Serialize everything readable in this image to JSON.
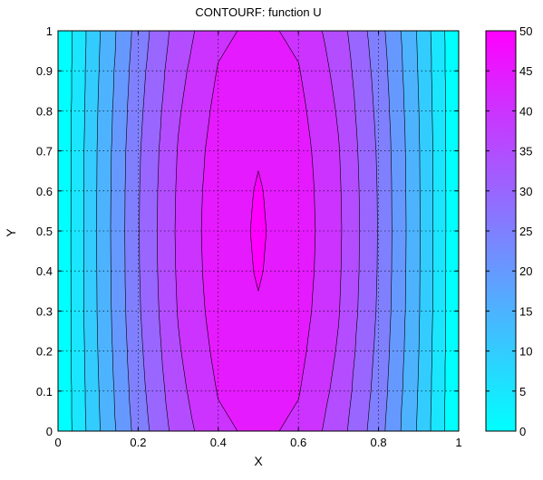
{
  "chart_data": {
    "type": "heatmap",
    "subtype": "filled-contour",
    "title": "CONTOURF:  function U",
    "xlabel": "X",
    "ylabel": "Y",
    "xlim": [
      0,
      1
    ],
    "ylim": [
      0,
      1
    ],
    "x_ticks": [
      "0",
      "0.2",
      "0.4",
      "0.6",
      "0.8",
      "1"
    ],
    "y_ticks": [
      "0",
      "0.1",
      "0.2",
      "0.3",
      "0.4",
      "0.5",
      "0.6",
      "0.7",
      "0.8",
      "0.9",
      "1"
    ],
    "grid": true,
    "grid_style": "dotted",
    "colormap": "cool",
    "colormap_endpoints": [
      "#00ffff",
      "#ff00ff"
    ],
    "levels": [
      0,
      5,
      10,
      15,
      20,
      25,
      30,
      35,
      40,
      45,
      50
    ],
    "clim": [
      0,
      50
    ],
    "grid_x": [
      0,
      0.1,
      0.2,
      0.3,
      0.4,
      0.5,
      0.6,
      0.7,
      0.8,
      0.9,
      1
    ],
    "grid_y": [
      0,
      0.1,
      0.2,
      0.3,
      0.4,
      0.5,
      0.6,
      0.7,
      0.8,
      0.9,
      1
    ],
    "u_values": [
      [
        0.0,
        14.3,
        27.1,
        37.3,
        43.9,
        46.2,
        43.9,
        37.3,
        27.1,
        14.3,
        0.0
      ],
      [
        0.0,
        14.7,
        28.0,
        38.5,
        45.3,
        47.6,
        45.3,
        38.5,
        28.0,
        14.7,
        0.0
      ],
      [
        0.0,
        15.1,
        28.7,
        39.5,
        46.4,
        48.8,
        46.4,
        39.5,
        28.7,
        15.1,
        0.0
      ],
      [
        0.0,
        15.4,
        29.3,
        40.3,
        47.3,
        49.7,
        47.3,
        40.3,
        29.3,
        15.4,
        0.0
      ],
      [
        0.0,
        15.5,
        29.6,
        40.7,
        47.8,
        50.3,
        47.8,
        40.7,
        29.6,
        15.5,
        0.0
      ],
      [
        0.0,
        15.6,
        29.7,
        40.9,
        48.0,
        50.5,
        48.0,
        40.9,
        29.7,
        15.6,
        0.0
      ],
      [
        0.0,
        15.5,
        29.6,
        40.7,
        47.8,
        50.3,
        47.8,
        40.7,
        29.6,
        15.5,
        0.0
      ],
      [
        0.0,
        15.4,
        29.3,
        40.3,
        47.3,
        49.7,
        47.3,
        40.3,
        29.3,
        15.4,
        0.0
      ],
      [
        0.0,
        15.1,
        28.7,
        39.5,
        46.4,
        48.8,
        46.4,
        39.5,
        28.7,
        15.1,
        0.0
      ],
      [
        0.0,
        14.7,
        28.0,
        38.5,
        45.3,
        47.6,
        45.3,
        38.5,
        28.0,
        14.7,
        0.0
      ],
      [
        0.0,
        14.3,
        27.1,
        37.3,
        43.9,
        46.2,
        43.9,
        37.3,
        27.1,
        14.3,
        0.0
      ]
    ],
    "colorbar": {
      "ticks": [
        "0",
        "5",
        "10",
        "15",
        "20",
        "25",
        "30",
        "35",
        "40",
        "45",
        "50"
      ]
    }
  }
}
